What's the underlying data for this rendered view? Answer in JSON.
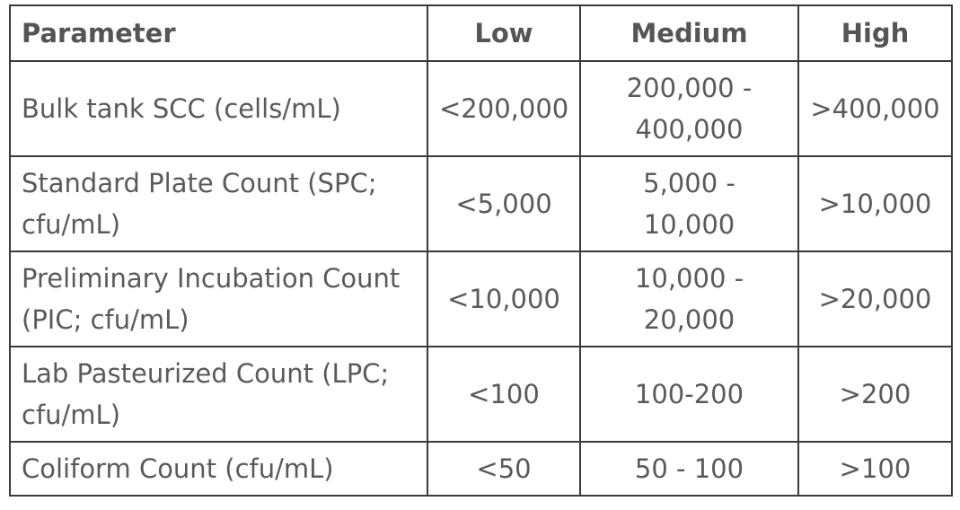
{
  "table": {
    "headers": {
      "parameter": "Parameter",
      "low": "Low",
      "medium": "Medium",
      "high": "High"
    },
    "rows": [
      {
        "parameter": "Bulk tank SCC (cells/mL)",
        "low": "<200,000",
        "medium_line1": "200,000 -",
        "medium_line2": "400,000",
        "high": ">400,000"
      },
      {
        "parameter_line1": "Standard Plate Count (SPC;",
        "parameter_line2": "cfu/mL)",
        "low": "<5,000",
        "medium_line1": "5,000 -",
        "medium_line2": "10,000",
        "high": ">10,000"
      },
      {
        "parameter_line1": "Preliminary Incubation Count",
        "parameter_line2": "(PIC; cfu/mL)",
        "low": "<10,000",
        "medium_line1": "10,000 -",
        "medium_line2": "20,000",
        "high": ">20,000"
      },
      {
        "parameter_line1": "Lab Pasteurized Count (LPC;",
        "parameter_line2": "cfu/mL)",
        "low": "<100",
        "medium": "100-200",
        "high": ">200"
      },
      {
        "parameter": "Coliform Count (cfu/mL)",
        "low": "<50",
        "medium": "50 - 100",
        "high": ">100"
      }
    ]
  }
}
